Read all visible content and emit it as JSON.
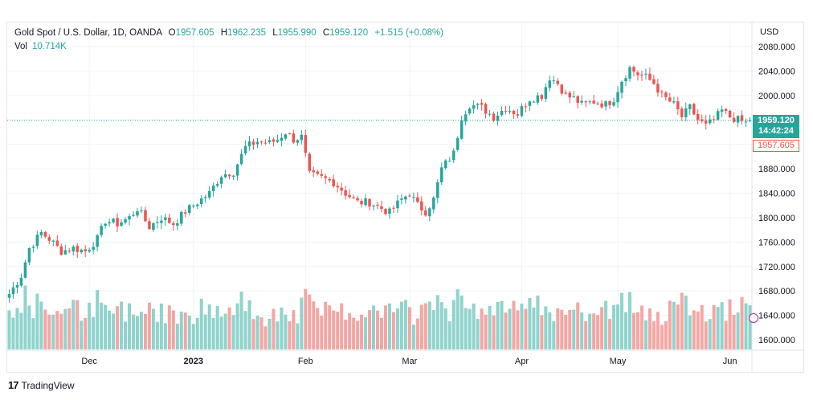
{
  "legend": {
    "symbol": "Gold Spot / U.S. Dollar, 1D, OANDA",
    "open_label": "O",
    "open": "1957.605",
    "high_label": "H",
    "high": "1962.235",
    "low_label": "L",
    "low": "1955.990",
    "close_label": "C",
    "close": "1959.120",
    "change": "+1.515 (+0.08%)",
    "vol_label": "Vol",
    "vol_value": "10.714K"
  },
  "axis": {
    "currency": "USD"
  },
  "price_tags": {
    "last_price": "1959.120",
    "countdown": "14:42:24",
    "open_price": "1957.605"
  },
  "branding": {
    "logo_text": "TradingView"
  },
  "colors": {
    "up": "#26a69a",
    "down": "#ef5350",
    "up_volume": "#8fd3cc",
    "down_volume": "#f4a6a3",
    "grid": "#f0f3fa"
  },
  "chart_data": {
    "type": "candlestick",
    "ylim": [
      1580,
      2080
    ],
    "yticks": [
      1600,
      1640,
      1680,
      1720,
      1760,
      1800,
      1840,
      1880,
      1920,
      1960,
      2000,
      2040,
      2080
    ],
    "ytick_labels": [
      "1600.000",
      "1640.000",
      "1680.000",
      "1720.000",
      "1760.000",
      "1800.000",
      "1840.000",
      "1880.000",
      "1920.000",
      "1960.000",
      "2000.000",
      "2040.000",
      "2080.000"
    ],
    "xtick_labels": [
      "Dec",
      "2023",
      "Feb",
      "Mar",
      "Apr",
      "May",
      "Jun"
    ],
    "xtick_index": [
      20,
      46,
      74,
      100,
      128,
      152,
      180
    ],
    "last_close": 1959.12,
    "current_open": 1957.605,
    "anchors": [
      [
        0,
        1675
      ],
      [
        3,
        1705
      ],
      [
        5,
        1750
      ],
      [
        8,
        1775
      ],
      [
        10,
        1765
      ],
      [
        13,
        1745
      ],
      [
        16,
        1750
      ],
      [
        19,
        1745
      ],
      [
        22,
        1765
      ],
      [
        24,
        1795
      ],
      [
        27,
        1790
      ],
      [
        30,
        1800
      ],
      [
        32,
        1815
      ],
      [
        35,
        1785
      ],
      [
        38,
        1800
      ],
      [
        41,
        1790
      ],
      [
        44,
        1810
      ],
      [
        47,
        1825
      ],
      [
        50,
        1840
      ],
      [
        53,
        1870
      ],
      [
        56,
        1875
      ],
      [
        59,
        1915
      ],
      [
        62,
        1925
      ],
      [
        65,
        1922
      ],
      [
        67,
        1928
      ],
      [
        69,
        1940
      ],
      [
        71,
        1928
      ],
      [
        73,
        1932
      ],
      [
        75,
        1870
      ],
      [
        78,
        1865
      ],
      [
        81,
        1858
      ],
      [
        84,
        1840
      ],
      [
        87,
        1825
      ],
      [
        90,
        1825
      ],
      [
        93,
        1815
      ],
      [
        95,
        1808
      ],
      [
        98,
        1830
      ],
      [
        100,
        1840
      ],
      [
        102,
        1820
      ],
      [
        104,
        1810
      ],
      [
        106,
        1830
      ],
      [
        108,
        1880
      ],
      [
        111,
        1905
      ],
      [
        113,
        1965
      ],
      [
        115,
        1985
      ],
      [
        118,
        1980
      ],
      [
        121,
        1965
      ],
      [
        124,
        1980
      ],
      [
        127,
        1970
      ],
      [
        130,
        1995
      ],
      [
        133,
        2000
      ],
      [
        135,
        2030
      ],
      [
        137,
        2020
      ],
      [
        139,
        2000
      ],
      [
        141,
        1995
      ],
      [
        143,
        1985
      ],
      [
        146,
        1990
      ],
      [
        149,
        1985
      ],
      [
        151,
        1995
      ],
      [
        153,
        2025
      ],
      [
        155,
        2045
      ],
      [
        157,
        2035
      ],
      [
        159,
        2030
      ],
      [
        161,
        2020
      ],
      [
        163,
        2000
      ],
      [
        166,
        1985
      ],
      [
        168,
        1965
      ],
      [
        170,
        1980
      ],
      [
        172,
        1960
      ],
      [
        174,
        1950
      ],
      [
        176,
        1960
      ],
      [
        178,
        1975
      ],
      [
        180,
        1965
      ],
      [
        182,
        1960
      ],
      [
        184,
        1955
      ],
      [
        185,
        1957.605
      ]
    ]
  }
}
